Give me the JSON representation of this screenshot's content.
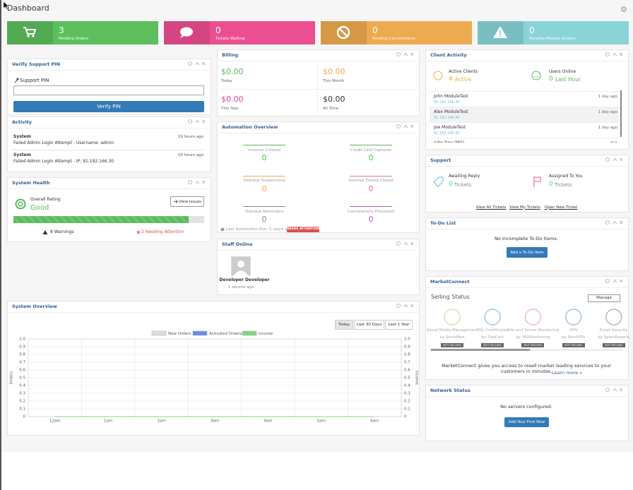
{
  "header": {
    "title": "Dashboard"
  },
  "stats": [
    {
      "count": 3,
      "label": "Pending Orders",
      "color": "#5cbf5c"
    },
    {
      "count": 0,
      "label": "Tickets Waiting",
      "color": "#ec4f91"
    },
    {
      "count": 0,
      "label": "Pending Cancellations",
      "color": "#eeaa4f"
    },
    {
      "count": 0,
      "label": "Pending Module Actions",
      "color": "#8ad4d8"
    }
  ],
  "verify_pin": {
    "title": "Verify Support PIN",
    "field_label": "Support PIN",
    "button": "Verify PIN"
  },
  "activity": {
    "title": "Activity",
    "items": [
      {
        "user": "System",
        "text": "Failed Admin Login Attempt - Username: admin",
        "time": "19 hours ago"
      },
      {
        "user": "System",
        "text": "Failed Admin Login Attempt - IP: 91.192.166.30",
        "time": "19 hours ago"
      }
    ]
  },
  "system_health": {
    "title": "System Health",
    "rating_label": "Overall Rating",
    "rating": "Good",
    "button": "View Issues",
    "warnings": "8 Warnings",
    "attention": "2 Needing Attention"
  },
  "billing": {
    "title": "Billing",
    "items": [
      {
        "amount": "$0.00",
        "label": "Today",
        "color": "#5cb85c"
      },
      {
        "amount": "$0.00",
        "label": "This Month",
        "color": "#f0ad4e"
      },
      {
        "amount": "$0.00",
        "label": "This Year",
        "color": "#d9489a"
      },
      {
        "amount": "$0.00",
        "label": "All Time",
        "color": "#333333"
      }
    ]
  },
  "automation": {
    "title": "Automation Overview",
    "items": [
      {
        "label": "Invoices Created",
        "count": 0,
        "color": "#5cb85c"
      },
      {
        "label": "Credit Card Captures",
        "count": 0,
        "color": "#5cb85c"
      },
      {
        "label": "Overdue Suspensions",
        "count": 0,
        "color": "#f0ad4e"
      },
      {
        "label": "Inactive Tickets Closed",
        "count": 0,
        "color": "#e86fa6"
      },
      {
        "label": "Overdue Reminders",
        "count": 0,
        "color": "#888888"
      },
      {
        "label": "Cancellations Processed",
        "count": 0,
        "color": "#b05fcf"
      }
    ],
    "last_run": "Last Automation Run: 5 years ago",
    "badge": "NEEDS ATTENTION"
  },
  "staff_online": {
    "title": "Staff Online",
    "name": "Developer Developer",
    "time": "1 second ago"
  },
  "system_overview": {
    "title": "System Overview",
    "ranges": [
      "Today",
      "Last 30 Days",
      "Last 1 Year"
    ],
    "chart": {
      "type": "line",
      "categories": [
        "12am",
        "1am",
        "2am",
        "3am",
        "4am",
        "5am",
        "6am"
      ],
      "ylabel": "Orders",
      "y2label": "Income",
      "ylim": [
        0,
        1
      ],
      "yticks": [
        0,
        0.1,
        0.2,
        0.3,
        0.4,
        0.5,
        0.6,
        0.7,
        0.8,
        0.9,
        {
          "value": 1,
          "label": "1.0"
        }
      ],
      "y2lim": [
        0,
        1
      ],
      "y2ticks": [
        0,
        0.1,
        0.2,
        0.3,
        0.4,
        0.5,
        0.6,
        0.7,
        0.8,
        0.9,
        {
          "value": 1,
          "label": "1.0"
        }
      ],
      "grid": true,
      "series": [
        {
          "name": "New Orders",
          "color": "#dddddd",
          "values": [
            0,
            0,
            0,
            0,
            0,
            0,
            0
          ]
        },
        {
          "name": "Activated Orders",
          "color": "#6c8df0",
          "values": [
            0,
            0,
            0,
            0,
            0,
            0,
            0
          ]
        },
        {
          "name": "Income",
          "color": "#7fd67f",
          "axis": "y2",
          "values": [
            0,
            0,
            0,
            0,
            0,
            0,
            0
          ]
        }
      ]
    }
  },
  "client_activity": {
    "title": "Client Activity",
    "active_clients": {
      "label": "Active Clients",
      "count": 4,
      "unit": "Active"
    },
    "users_online": {
      "label": "Users Online",
      "count": 0,
      "unit": "Last Hour"
    },
    "clients": [
      {
        "name": "John ModuleTest",
        "ip": "91.192.166.30",
        "time": "1 day ago"
      },
      {
        "name": "Alex ModuleTest",
        "ip": "91.192.166.30",
        "time": "1 day ago"
      },
      {
        "name": "Joe ModuleTest",
        "ip": "91.192.166.30",
        "time": "1 day ago"
      },
      {
        "name": "John Doe (MG)",
        "time": "N/A"
      }
    ]
  },
  "support": {
    "title": "Support",
    "awaiting": {
      "label": "Awaiting Reply",
      "count": 0,
      "unit": "Tickets"
    },
    "assigned": {
      "label": "Assigned To You",
      "count": 0,
      "unit": "Tickets"
    },
    "links": [
      "View All Tickets",
      "View My Tickets",
      "Open New Ticket"
    ]
  },
  "todo": {
    "title": "To-Do List",
    "empty": "No Incomplete To-Do Items.",
    "button": "Add a To-Do Item"
  },
  "marketconnect": {
    "title": "MarketConnect",
    "selling_status": "Selling Status",
    "manage": "Manage",
    "products": [
      {
        "name": "Social Media Management",
        "vendor": "by SocialBee",
        "status": "NOT SELLING"
      },
      {
        "name": "SSL Certificates",
        "vendor": "by DigiCert",
        "status": "NOT SELLING"
      },
      {
        "name": "Site and Server Monitoring",
        "vendor": "by 360Monitoring",
        "status": "NOT SELLING"
      },
      {
        "name": "VPN",
        "vendor": "by NordVPN",
        "status": "NOT SELLING"
      },
      {
        "name": "Email Security",
        "vendor": "by SpamExperts",
        "status": "NOT SELLING"
      }
    ],
    "description": "MarketConnect gives you access to resell market leading services to your customers in minutes.",
    "learn_more": "Learn more »"
  },
  "network_status": {
    "title": "Network Status",
    "empty": "No servers configured.",
    "button": "Add Your First Now"
  }
}
